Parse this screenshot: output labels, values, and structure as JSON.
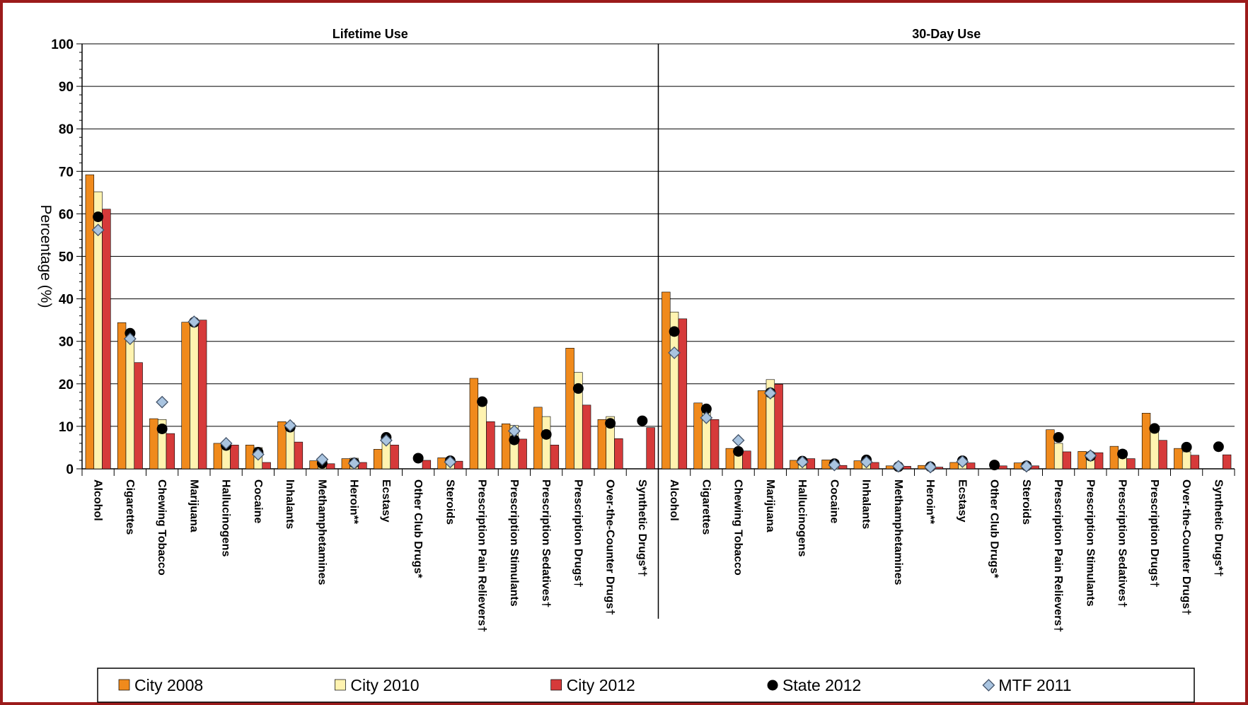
{
  "colors": {
    "border": "#9b1b1b",
    "city2008": "#f08a1c",
    "city2010": "#fff3b0",
    "city2012": "#d63a3a",
    "state2012": "#000000",
    "mtf2011": "#a9c4e0",
    "grid": "#000000"
  },
  "chart_data": {
    "type": "bar",
    "ylabel": "Percentage (%)",
    "ylim": [
      0,
      100
    ],
    "yticks": [
      0,
      10,
      20,
      30,
      40,
      50,
      60,
      70,
      80,
      90,
      100
    ],
    "grid": true,
    "legend_position": "bottom",
    "panels": [
      {
        "title": "Lifetime Use",
        "categories": [
          "Alcohol",
          "Cigarettes",
          "Chewing Tobacco",
          "Marijuana",
          "Hallucinogens",
          "Cocaine",
          "Inhalants",
          "Methamphetamines",
          "Heroin**",
          "Ecstasy",
          "Other Club Drugs*",
          "Steroids",
          "Prescription Pain Relievers†",
          "Prescription Stimulants",
          "Prescription Sedatives†",
          "Prescription Drugs†",
          "Over-the-Counter Drugs†",
          "Synthetic Drugs*†"
        ],
        "series": [
          {
            "name": "City 2008",
            "kind": "bar",
            "values": [
              69.2,
              34.4,
              11.8,
              34.5,
              6.0,
              5.6,
              11.1,
              1.9,
              2.4,
              4.6,
              null,
              2.6,
              21.3,
              10.6,
              14.5,
              28.4,
              11.6,
              null
            ]
          },
          {
            "name": "City 2010",
            "kind": "bar",
            "values": [
              65.2,
              30.6,
              11.6,
              34.8,
              5.2,
              5.0,
              10.8,
              1.7,
              2.5,
              6.6,
              null,
              2.2,
              16.5,
              10.2,
              12.3,
              22.7,
              12.3,
              null
            ]
          },
          {
            "name": "City 2012",
            "kind": "bar",
            "values": [
              61.1,
              25.0,
              8.3,
              35.0,
              5.6,
              1.5,
              6.3,
              1.2,
              1.5,
              5.6,
              2.0,
              1.8,
              11.1,
              7.0,
              5.6,
              15.0,
              7.1,
              9.7
            ]
          },
          {
            "name": "State 2012",
            "kind": "dot",
            "values": [
              59.3,
              31.9,
              9.4,
              34.5,
              5.5,
              3.9,
              9.8,
              1.3,
              1.4,
              7.4,
              2.5,
              1.9,
              15.8,
              6.8,
              8.1,
              18.9,
              10.7,
              11.3
            ]
          },
          {
            "name": "MTF 2011",
            "kind": "diamond",
            "values": [
              56.2,
              30.6,
              15.7,
              34.6,
              6.0,
              3.4,
              10.2,
              2.2,
              1.3,
              6.7,
              null,
              1.6,
              null,
              8.9,
              null,
              null,
              null,
              null
            ]
          }
        ]
      },
      {
        "title": "30-Day Use",
        "categories": [
          "Alcohol",
          "Cigarettes",
          "Chewing Tobacco",
          "Marijuana",
          "Hallucinogens",
          "Cocaine",
          "Inhalants",
          "Methamphetamines",
          "Heroin**",
          "Ecstasy",
          "Other Club Drugs*",
          "Steroids",
          "Prescription Pain Relievers†",
          "Prescription Stimulants",
          "Prescription Sedatives†",
          "Prescription Drugs†",
          "Over-the-Counter Drugs†",
          "Synthetic Drugs*†"
        ],
        "series": [
          {
            "name": "City 2008",
            "kind": "bar",
            "values": [
              41.6,
              15.5,
              4.8,
              18.4,
              2.0,
              2.1,
              1.9,
              0.7,
              0.8,
              1.5,
              null,
              1.4,
              9.2,
              4.1,
              5.3,
              13.1,
              4.8,
              null
            ]
          },
          {
            "name": "City 2010",
            "kind": "bar",
            "values": [
              36.9,
              14.6,
              4.7,
              21.0,
              2.1,
              2.0,
              2.4,
              0.6,
              0.7,
              2.5,
              null,
              1.5,
              6.0,
              3.6,
              4.3,
              9.6,
              4.0,
              null
            ]
          },
          {
            "name": "City 2012",
            "kind": "bar",
            "values": [
              35.3,
              11.6,
              4.2,
              19.9,
              2.4,
              0.8,
              1.5,
              0.6,
              0.4,
              1.4,
              0.7,
              0.7,
              4.0,
              3.8,
              2.4,
              6.7,
              3.2,
              3.3
            ]
          },
          {
            "name": "State 2012",
            "kind": "dot",
            "values": [
              32.3,
              14.1,
              4.1,
              17.9,
              1.8,
              1.2,
              2.1,
              0.5,
              0.5,
              1.9,
              0.9,
              0.7,
              7.4,
              3.0,
              3.5,
              9.5,
              5.1,
              5.2
            ]
          },
          {
            "name": "MTF 2011",
            "kind": "diamond",
            "values": [
              27.3,
              12.0,
              6.7,
              17.8,
              1.6,
              0.9,
              1.6,
              0.6,
              0.4,
              1.7,
              null,
              0.6,
              null,
              3.1,
              null,
              null,
              null,
              null
            ]
          }
        ]
      }
    ],
    "legend": [
      "City 2008",
      "City 2010",
      "City 2012",
      "State 2012",
      "MTF 2011"
    ]
  }
}
